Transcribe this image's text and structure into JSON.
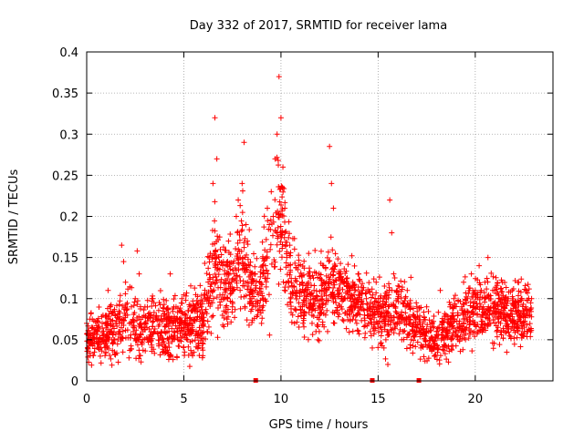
{
  "chart_data": {
    "type": "scatter",
    "title": "Day 332 of 2017, SRMTID for receiver lama",
    "xlabel": "GPS time / hours",
    "ylabel": "SRMTID / TECUs",
    "xlim": [
      0,
      24
    ],
    "ylim": [
      0,
      0.4
    ],
    "xticks": [
      {
        "value": 0,
        "label": "0"
      },
      {
        "value": 5,
        "label": "5"
      },
      {
        "value": 10,
        "label": "10"
      },
      {
        "value": 15,
        "label": "15"
      },
      {
        "value": 20,
        "label": "20"
      }
    ],
    "yticks": [
      {
        "value": 0,
        "label": "0"
      },
      {
        "value": 0.05,
        "label": "0.05"
      },
      {
        "value": 0.1,
        "label": "0.1"
      },
      {
        "value": 0.15,
        "label": "0.15"
      },
      {
        "value": 0.2,
        "label": "0.2"
      },
      {
        "value": 0.25,
        "label": "0.25"
      },
      {
        "value": 0.3,
        "label": "0.3"
      },
      {
        "value": 0.35,
        "label": "0.35"
      },
      {
        "value": 0.4,
        "label": "0.4"
      }
    ],
    "grid": true,
    "marker": "+",
    "color": "#ff0000",
    "series": [
      {
        "name": "SRMTID",
        "points": [
          [
            0.0,
            0.07
          ],
          [
            0.1,
            0.055
          ],
          [
            0.2,
            0.045
          ],
          [
            0.3,
            0.05
          ],
          [
            0.4,
            0.035
          ],
          [
            0.5,
            0.06
          ],
          [
            0.6,
            0.04
          ],
          [
            0.7,
            0.03
          ],
          [
            0.8,
            0.05
          ],
          [
            0.9,
            0.045
          ],
          [
            1.0,
            0.07
          ],
          [
            1.1,
            0.11
          ],
          [
            1.2,
            0.09
          ],
          [
            1.3,
            0.06
          ],
          [
            1.4,
            0.05
          ],
          [
            1.5,
            0.07
          ],
          [
            1.6,
            0.08
          ],
          [
            1.7,
            0.06
          ],
          [
            1.8,
            0.165
          ],
          [
            1.9,
            0.145
          ],
          [
            2.0,
            0.12
          ],
          [
            2.1,
            0.08
          ],
          [
            2.2,
            0.07
          ],
          [
            2.3,
            0.09
          ],
          [
            2.4,
            0.06
          ],
          [
            2.5,
            0.1
          ],
          [
            2.6,
            0.158
          ],
          [
            2.7,
            0.13
          ],
          [
            2.8,
            0.07
          ],
          [
            2.9,
            0.06
          ],
          [
            3.0,
            0.09
          ],
          [
            3.1,
            0.065
          ],
          [
            3.2,
            0.05
          ],
          [
            3.3,
            0.08
          ],
          [
            3.4,
            0.1
          ],
          [
            3.5,
            0.06
          ],
          [
            3.6,
            0.075
          ],
          [
            3.7,
            0.045
          ],
          [
            3.8,
            0.055
          ],
          [
            3.9,
            0.035
          ],
          [
            4.0,
            0.06
          ],
          [
            4.1,
            0.08
          ],
          [
            4.2,
            0.05
          ],
          [
            4.3,
            0.13
          ],
          [
            4.4,
            0.07
          ],
          [
            4.5,
            0.06
          ],
          [
            4.6,
            0.09
          ],
          [
            4.7,
            0.05
          ],
          [
            4.8,
            0.07
          ],
          [
            4.9,
            0.1
          ],
          [
            5.0,
            0.065
          ],
          [
            5.1,
            0.08
          ],
          [
            5.2,
            0.05
          ],
          [
            5.3,
            0.09
          ],
          [
            5.4,
            0.06
          ],
          [
            5.5,
            0.075
          ],
          [
            5.6,
            0.055
          ],
          [
            5.7,
            0.085
          ],
          [
            5.8,
            0.065
          ],
          [
            5.9,
            0.09
          ],
          [
            6.0,
            0.07
          ],
          [
            6.1,
            0.1
          ],
          [
            6.2,
            0.06
          ],
          [
            6.3,
            0.15
          ],
          [
            6.4,
            0.11
          ],
          [
            6.5,
            0.24
          ],
          [
            6.6,
            0.32
          ],
          [
            6.7,
            0.27
          ],
          [
            6.8,
            0.15
          ],
          [
            6.9,
            0.12
          ],
          [
            7.0,
            0.14
          ],
          [
            7.1,
            0.1
          ],
          [
            7.2,
            0.13
          ],
          [
            7.3,
            0.17
          ],
          [
            7.4,
            0.11
          ],
          [
            7.5,
            0.09
          ],
          [
            7.6,
            0.13
          ],
          [
            7.7,
            0.2
          ],
          [
            7.8,
            0.22
          ],
          [
            7.9,
            0.15
          ],
          [
            8.0,
            0.24
          ],
          [
            8.1,
            0.29
          ],
          [
            8.2,
            0.19
          ],
          [
            8.3,
            0.12
          ],
          [
            8.4,
            0.14
          ],
          [
            8.5,
            0.1
          ],
          [
            8.6,
            0.13
          ],
          [
            8.7,
            0.09
          ],
          [
            8.8,
            0.08
          ],
          [
            8.9,
            0.12
          ],
          [
            9.0,
            0.07
          ],
          [
            9.1,
            0.1
          ],
          [
            9.2,
            0.14
          ],
          [
            9.3,
            0.21
          ],
          [
            9.4,
            0.19
          ],
          [
            9.5,
            0.23
          ],
          [
            9.6,
            0.2
          ],
          [
            9.7,
            0.27
          ],
          [
            9.8,
            0.3
          ],
          [
            9.9,
            0.37
          ],
          [
            10.0,
            0.32
          ],
          [
            10.1,
            0.26
          ],
          [
            10.2,
            0.21
          ],
          [
            10.3,
            0.15
          ],
          [
            10.4,
            0.12
          ],
          [
            10.5,
            0.1
          ],
          [
            10.6,
            0.08
          ],
          [
            10.7,
            0.07
          ],
          [
            10.8,
            0.11
          ],
          [
            10.9,
            0.14
          ],
          [
            11.0,
            0.09
          ],
          [
            11.1,
            0.12
          ],
          [
            11.2,
            0.08
          ],
          [
            11.3,
            0.1
          ],
          [
            11.4,
            0.13
          ],
          [
            11.5,
            0.09
          ],
          [
            11.6,
            0.07
          ],
          [
            11.7,
            0.11
          ],
          [
            11.8,
            0.06
          ],
          [
            11.9,
            0.05
          ],
          [
            12.0,
            0.09
          ],
          [
            12.1,
            0.11
          ],
          [
            12.2,
            0.14
          ],
          [
            12.3,
            0.08
          ],
          [
            12.4,
            0.06
          ],
          [
            12.5,
            0.285
          ],
          [
            12.6,
            0.24
          ],
          [
            12.7,
            0.21
          ],
          [
            12.8,
            0.14
          ],
          [
            12.9,
            0.11
          ],
          [
            13.0,
            0.13
          ],
          [
            13.1,
            0.09
          ],
          [
            13.2,
            0.12
          ],
          [
            13.3,
            0.1
          ],
          [
            13.4,
            0.08
          ],
          [
            13.5,
            0.11
          ],
          [
            13.6,
            0.09
          ],
          [
            13.7,
            0.12
          ],
          [
            13.8,
            0.1
          ],
          [
            13.9,
            0.07
          ],
          [
            14.0,
            0.13
          ],
          [
            14.1,
            0.09
          ],
          [
            14.2,
            0.11
          ],
          [
            14.3,
            0.08
          ],
          [
            14.4,
            0.1
          ],
          [
            14.5,
            0.07
          ],
          [
            14.6,
            0.06
          ],
          [
            14.7,
            0.04
          ],
          [
            14.8,
            0.09
          ],
          [
            14.9,
            0.12
          ],
          [
            15.0,
            0.08
          ],
          [
            15.1,
            0.1
          ],
          [
            15.2,
            0.06
          ],
          [
            15.3,
            0.04
          ],
          [
            15.4,
            0.05
          ],
          [
            15.5,
            0.02
          ],
          [
            15.6,
            0.22
          ],
          [
            15.7,
            0.18
          ],
          [
            15.8,
            0.13
          ],
          [
            15.9,
            0.09
          ],
          [
            16.0,
            0.1
          ],
          [
            16.1,
            0.07
          ],
          [
            16.2,
            0.08
          ],
          [
            16.3,
            0.06
          ],
          [
            16.4,
            0.09
          ],
          [
            16.5,
            0.11
          ],
          [
            16.6,
            0.07
          ],
          [
            16.7,
            0.05
          ],
          [
            16.8,
            0.08
          ],
          [
            16.9,
            0.06
          ],
          [
            17.0,
            0.09
          ],
          [
            17.1,
            0.06
          ],
          [
            17.2,
            0.04
          ],
          [
            17.3,
            0.07
          ],
          [
            17.4,
            0.05
          ],
          [
            17.5,
            0.09
          ],
          [
            17.6,
            0.06
          ],
          [
            17.7,
            0.04
          ],
          [
            17.8,
            0.05
          ],
          [
            17.9,
            0.03
          ],
          [
            18.0,
            0.06
          ],
          [
            18.1,
            0.04
          ],
          [
            18.2,
            0.11
          ],
          [
            18.3,
            0.07
          ],
          [
            18.4,
            0.05
          ],
          [
            18.5,
            0.08
          ],
          [
            18.6,
            0.06
          ],
          [
            18.7,
            0.09
          ],
          [
            18.8,
            0.07
          ],
          [
            18.9,
            0.1
          ],
          [
            19.0,
            0.06
          ],
          [
            19.1,
            0.08
          ],
          [
            19.2,
            0.05
          ],
          [
            19.3,
            0.09
          ],
          [
            19.4,
            0.12
          ],
          [
            19.5,
            0.08
          ],
          [
            19.6,
            0.1
          ],
          [
            19.7,
            0.07
          ],
          [
            19.8,
            0.13
          ],
          [
            19.9,
            0.09
          ],
          [
            20.0,
            0.11
          ],
          [
            20.1,
            0.08
          ],
          [
            20.2,
            0.14
          ],
          [
            20.3,
            0.11
          ],
          [
            20.4,
            0.09
          ],
          [
            20.5,
            0.12
          ],
          [
            20.6,
            0.08
          ],
          [
            20.7,
            0.1
          ],
          [
            20.8,
            0.07
          ],
          [
            20.9,
            0.11
          ],
          [
            21.0,
            0.09
          ],
          [
            21.1,
            0.06
          ],
          [
            21.2,
            0.1
          ],
          [
            21.3,
            0.07
          ],
          [
            21.4,
            0.12
          ],
          [
            21.5,
            0.09
          ],
          [
            21.6,
            0.06
          ],
          [
            21.7,
            0.1
          ],
          [
            21.8,
            0.08
          ],
          [
            21.9,
            0.11
          ],
          [
            22.0,
            0.07
          ],
          [
            22.1,
            0.09
          ],
          [
            22.2,
            0.12
          ],
          [
            22.3,
            0.08
          ],
          [
            22.4,
            0.1
          ],
          [
            22.5,
            0.07
          ],
          [
            22.6,
            0.09
          ],
          [
            22.7,
            0.06
          ],
          [
            22.8,
            0.08
          ],
          [
            22.9,
            0.1
          ]
        ]
      }
    ],
    "envelope": {
      "x": [
        0,
        1,
        2,
        3,
        4,
        5,
        6,
        6.5,
        7,
        7.5,
        8,
        8.5,
        9,
        9.5,
        10,
        10.5,
        11,
        11.5,
        12,
        12.5,
        13,
        13.5,
        14,
        14.5,
        15,
        15.5,
        16,
        16.5,
        17,
        17.5,
        18,
        18.5,
        19,
        19.5,
        20,
        20.5,
        21,
        21.5,
        22,
        22.5,
        23
      ],
      "center": [
        0.05,
        0.055,
        0.07,
        0.065,
        0.06,
        0.065,
        0.075,
        0.13,
        0.12,
        0.12,
        0.15,
        0.11,
        0.12,
        0.16,
        0.2,
        0.12,
        0.11,
        0.1,
        0.1,
        0.12,
        0.11,
        0.1,
        0.1,
        0.09,
        0.08,
        0.08,
        0.09,
        0.08,
        0.07,
        0.06,
        0.05,
        0.06,
        0.07,
        0.08,
        0.09,
        0.09,
        0.09,
        0.085,
        0.08,
        0.08,
        0.08
      ],
      "spread": [
        0.02,
        0.025,
        0.035,
        0.03,
        0.03,
        0.03,
        0.03,
        0.05,
        0.04,
        0.04,
        0.05,
        0.04,
        0.04,
        0.05,
        0.06,
        0.04,
        0.035,
        0.035,
        0.035,
        0.035,
        0.035,
        0.03,
        0.03,
        0.03,
        0.03,
        0.03,
        0.03,
        0.03,
        0.025,
        0.025,
        0.02,
        0.025,
        0.025,
        0.03,
        0.03,
        0.03,
        0.035,
        0.03,
        0.03,
        0.03,
        0.03
      ]
    },
    "axis_markers": [
      8.7,
      14.7,
      17.1
    ]
  }
}
